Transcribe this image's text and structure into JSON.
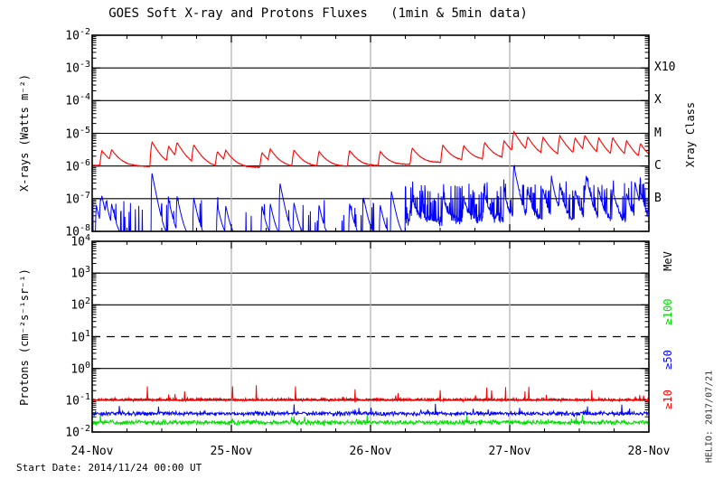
{
  "title": "GOES Soft X-ray and Protons Fluxes   (1min & 5min data)",
  "footer": {
    "start_date": "Start Date: 2014/11/24 00:00 UT",
    "credit": "HELIO: 2017/07/21"
  },
  "colors": {
    "xray_long": "#ff0000",
    "xray_short": "#0000ff",
    "protons_gte10": "#ff0000",
    "protons_gte50": "#0000ff",
    "protons_gte100": "#00dd00",
    "day_gridline": "#b0b0b0",
    "frame": "#000000"
  },
  "chart_data": {
    "type": "line",
    "title": "GOES Soft X-ray and Protons Fluxes (1min & 5min data)",
    "x_axis": {
      "day_labels": [
        "24-Nov",
        "25-Nov",
        "26-Nov",
        "27-Nov",
        "28-Nov"
      ],
      "span_days": 4,
      "minor_tick_hours": 6,
      "start": "2014/11/24 00:00 UT"
    },
    "panels": [
      {
        "id": "xray",
        "ylabel": "X-rays (Watts m⁻²)",
        "y_log_range": [
          -8,
          -2
        ],
        "y_tick_exponents": [
          -2,
          -3,
          -4,
          -5,
          -6,
          -7,
          -8
        ],
        "decade_lines": [
          -3,
          -4,
          -5,
          -6,
          -7
        ],
        "right_axis": {
          "title": "Xray Class",
          "labels": [
            {
              "text": "X10",
              "exp": -3
            },
            {
              "text": "X",
              "exp": -4
            },
            {
              "text": "M",
              "exp": -5
            },
            {
              "text": "C",
              "exp": -6
            },
            {
              "text": "B",
              "exp": -7
            }
          ]
        },
        "series": [
          {
            "name": "xray-long",
            "color": "#ff0000",
            "cadence": "1min",
            "baseline_log": [
              [
                0,
                -5.98
              ],
              [
                0.5,
                -6.03
              ],
              [
                1.0,
                -6.06
              ],
              [
                1.6,
                -6.03
              ],
              [
                2.1,
                -6.0
              ],
              [
                2.5,
                -5.9
              ],
              [
                3.0,
                -5.78
              ],
              [
                3.4,
                -5.78
              ],
              [
                3.7,
                -5.86
              ],
              [
                4.0,
                -5.93
              ]
            ],
            "flares": [
              [
                0.07,
                -5.72
              ],
              [
                0.14,
                -5.78
              ],
              [
                0.43,
                -5.35
              ],
              [
                0.55,
                -5.57
              ],
              [
                0.61,
                -5.47
              ],
              [
                0.73,
                -5.5
              ],
              [
                0.9,
                -5.75
              ],
              [
                0.96,
                -5.8
              ],
              [
                1.22,
                -5.78
              ],
              [
                1.28,
                -5.72
              ],
              [
                1.45,
                -5.68
              ],
              [
                1.63,
                -5.75
              ],
              [
                1.85,
                -5.7
              ],
              [
                2.07,
                -5.75
              ],
              [
                2.3,
                -5.62
              ],
              [
                2.52,
                -5.52
              ],
              [
                2.67,
                -5.58
              ],
              [
                2.82,
                -5.45
              ],
              [
                2.96,
                -5.4
              ],
              [
                3.03,
                -5.06
              ],
              [
                3.13,
                -5.32
              ],
              [
                3.24,
                -5.28
              ],
              [
                3.36,
                -5.2
              ],
              [
                3.47,
                -5.32
              ],
              [
                3.54,
                -5.24
              ],
              [
                3.64,
                -5.32
              ],
              [
                3.74,
                -5.28
              ],
              [
                3.84,
                -5.42
              ],
              [
                3.94,
                -5.52
              ]
            ]
          },
          {
            "name": "xray-short",
            "color": "#0000ff",
            "cadence": "1min",
            "floor_log": -8.2,
            "spike_offset_from_long": -1.5,
            "extra_spikes": [
              [
                0.03,
                -7.25
              ],
              [
                0.06,
                -7.1
              ],
              [
                0.1,
                -7.3
              ],
              [
                0.43,
                -6.35
              ],
              [
                1.35,
                -6.55
              ],
              [
                1.95,
                -7.0
              ],
              [
                2.15,
                -6.8
              ],
              [
                3.03,
                -6.15
              ],
              [
                3.3,
                -6.4
              ],
              [
                3.55,
                -6.45
              ],
              [
                3.9,
                -6.55
              ]
            ],
            "active_interval_days": [
              2.25,
              4.0
            ],
            "active_base_log": -7.75
          }
        ]
      },
      {
        "id": "protons",
        "ylabel": "Protons (cm⁻²s⁻¹sr⁻¹)",
        "y_log_range": [
          -2,
          4
        ],
        "y_tick_exponents": [
          4,
          3,
          2,
          1,
          0,
          -1,
          -2
        ],
        "decade_lines": [
          3,
          2,
          0,
          -1
        ],
        "threshold_line": {
          "exp": 1,
          "style": "dashed"
        },
        "right_axis": {
          "unit": "MeV",
          "labels": [
            {
              "text": "≥100",
              "color": "#00dd00"
            },
            {
              "text": "≥50",
              "color": "#0000ff"
            },
            {
              "text": "≥10",
              "color": "#ff0000"
            }
          ]
        },
        "series": [
          {
            "name": "protons-gte10",
            "color": "#ff0000",
            "cadence": "5min",
            "base_log": -0.98,
            "noise_sd": 0.06,
            "spike_prob": 0.03,
            "spike_max": 0.42,
            "clamp": [
              -1.15,
              -0.52
            ]
          },
          {
            "name": "protons-gte50",
            "color": "#0000ff",
            "cadence": "5min",
            "base_log": -1.42,
            "noise_sd": 0.08,
            "spike_prob": 0.015,
            "spike_max": 0.3,
            "clamp": [
              -1.66,
              -0.98
            ]
          },
          {
            "name": "protons-gte100",
            "color": "#00dd00",
            "cadence": "5min",
            "base_log": -1.7,
            "noise_sd": 0.09,
            "spike_prob": 0.01,
            "spike_max": 0.25,
            "clamp": [
              -2.0,
              -1.32
            ]
          }
        ]
      }
    ]
  }
}
